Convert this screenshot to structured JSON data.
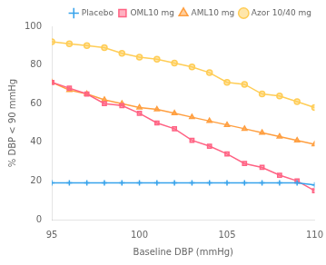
{
  "chart_data": {
    "type": "line",
    "x": [
      95,
      96,
      97,
      98,
      99,
      100,
      101,
      102,
      103,
      104,
      105,
      106,
      107,
      108,
      109,
      110
    ],
    "series": [
      {
        "name": "Placebo",
        "marker": "plus",
        "values": [
          19,
          19,
          19,
          19,
          19,
          19,
          19,
          19,
          19,
          19,
          19,
          19,
          19,
          19,
          19,
          18
        ]
      },
      {
        "name": "OML10 mg",
        "marker": "square",
        "values": [
          71,
          68,
          65,
          60,
          59,
          55,
          50,
          47,
          41,
          38,
          34,
          29,
          27,
          23,
          20,
          15
        ]
      },
      {
        "name": "AML10 mg",
        "marker": "triangle",
        "values": [
          71,
          67,
          65,
          62,
          60,
          58,
          57,
          55,
          53,
          51,
          49,
          47,
          45,
          43,
          41,
          39
        ]
      },
      {
        "name": "Azor 10/40 mg",
        "marker": "circle",
        "values": [
          92,
          91,
          90,
          89,
          86,
          84,
          83,
          81,
          79,
          76,
          71,
          70,
          65,
          64,
          61,
          58
        ]
      }
    ],
    "xlabel": "Baseline DBP (mmHg)",
    "ylabel": "% DBP < 90 mmHg",
    "xlim": [
      95,
      110
    ],
    "ylim": [
      0,
      100
    ],
    "xticks": [
      95,
      100,
      105,
      110
    ],
    "yticks": [
      0,
      20,
      40,
      60,
      80,
      100
    ],
    "grid": false,
    "legend": "upper right"
  }
}
